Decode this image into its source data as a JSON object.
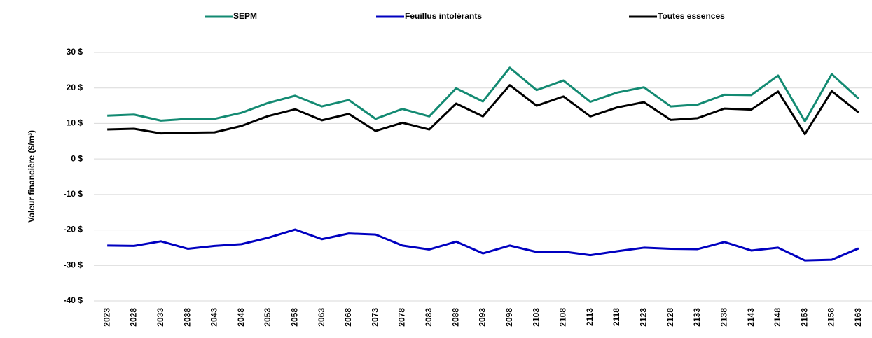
{
  "chart_data": {
    "type": "line",
    "ylabel": "Valeur  financière  ($/m³)",
    "categories": [
      "2023",
      "2028",
      "2033",
      "2038",
      "2043",
      "2048",
      "2053",
      "2058",
      "2063",
      "2068",
      "2073",
      "2078",
      "2083",
      "2088",
      "2093",
      "2098",
      "2103",
      "2108",
      "2113",
      "2118",
      "2123",
      "2128",
      "2133",
      "2138",
      "2143",
      "2148",
      "2153",
      "2158",
      "2163"
    ],
    "series": [
      {
        "name": "SEPM",
        "color": "#138a72",
        "values": [
          12.2,
          12.5,
          10.8,
          11.3,
          11.3,
          13.0,
          15.8,
          17.8,
          14.8,
          16.6,
          11.3,
          14.1,
          12.0,
          19.9,
          16.2,
          25.7,
          19.4,
          22.1,
          16.1,
          18.7,
          20.2,
          14.8,
          15.3,
          18.1,
          18.0,
          23.5,
          10.6,
          23.9,
          17.0
        ]
      },
      {
        "name": "Feuillus intolérants",
        "color": "#0000c0",
        "values": [
          -24.4,
          -24.5,
          -23.2,
          -25.3,
          -24.5,
          -24.0,
          -22.2,
          -19.9,
          -22.6,
          -21.0,
          -21.3,
          -24.4,
          -25.5,
          -23.3,
          -26.6,
          -24.4,
          -26.2,
          -26.1,
          -27.1,
          -26.0,
          -25.0,
          -25.3,
          -25.4,
          -23.4,
          -25.8,
          -25.0,
          -28.6,
          -28.4,
          -25.2
        ]
      },
      {
        "name": "Toutes essences",
        "color": "#000000",
        "values": [
          8.3,
          8.5,
          7.2,
          7.4,
          7.5,
          9.3,
          12.1,
          14.0,
          10.9,
          12.7,
          7.9,
          10.2,
          8.3,
          15.6,
          12.0,
          20.8,
          15.0,
          17.6,
          12.0,
          14.5,
          16.0,
          11.0,
          11.5,
          14.2,
          13.9,
          19.0,
          7.0,
          19.1,
          13.1
        ]
      }
    ],
    "ylim": [
      -40,
      30
    ],
    "yticks": [
      {
        "value": -40,
        "label": "-40 $"
      },
      {
        "value": -30,
        "label": "-30 $"
      },
      {
        "value": -20,
        "label": "-20 $"
      },
      {
        "value": -10,
        "label": "-10 $"
      },
      {
        "value": 0,
        "label": "0 $"
      },
      {
        "value": 10,
        "label": "10 $"
      },
      {
        "value": 20,
        "label": "20 $"
      },
      {
        "value": 30,
        "label": "30 $"
      }
    ],
    "grid": true,
    "legend": "top"
  }
}
